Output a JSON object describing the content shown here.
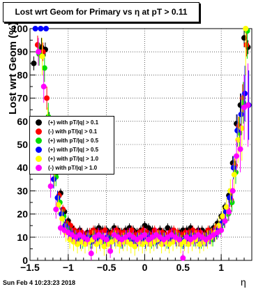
{
  "header": {
    "title": "Lost wrt Geom for Primary vs   η at pT > 0.11",
    "timestamp": "Sun Feb  4 10:23:23 2018"
  },
  "chart_data": {
    "type": "scatter",
    "title": "Lost wrt Geom for Primary vs   η at pT > 0.11",
    "xlabel": "η",
    "ylabel": "Lost wrt Geom (%)",
    "xlim": [
      -1.5,
      1.4
    ],
    "ylim": [
      0,
      100
    ],
    "xticks": [
      "−1.5",
      "−1",
      "−0.5",
      "0",
      "0.5",
      "1"
    ],
    "yticks": [
      "0",
      "10",
      "20",
      "30",
      "40",
      "50",
      "60",
      "70",
      "80",
      "90",
      "100"
    ],
    "grid": true,
    "legend_position": "center-left",
    "series": [
      {
        "name": "(+) with pT/|q| > 0.1",
        "color": "#000000",
        "x": [
          -1.45,
          -1.35,
          -1.3,
          -1.25,
          -1.2,
          -1.15,
          -1.1,
          -1.05,
          -1.0,
          -0.95,
          -0.9,
          -0.85,
          -0.8,
          -0.75,
          -0.7,
          -0.65,
          -0.6,
          -0.55,
          -0.5,
          -0.45,
          -0.4,
          -0.35,
          -0.3,
          -0.25,
          -0.2,
          -0.15,
          -0.1,
          -0.05,
          0.0,
          0.05,
          0.1,
          0.15,
          0.2,
          0.25,
          0.3,
          0.35,
          0.4,
          0.45,
          0.5,
          0.55,
          0.6,
          0.65,
          0.7,
          0.75,
          0.8,
          0.85,
          0.9,
          0.95,
          1.0,
          1.05,
          1.1,
          1.15,
          1.2,
          1.25,
          1.3,
          1.35
        ],
        "y": [
          85,
          92,
          91,
          60,
          45,
          38,
          29,
          21,
          17,
          14,
          12,
          13,
          11,
          12,
          12,
          13,
          14,
          13,
          13,
          12,
          14,
          13,
          12,
          13,
          14,
          13,
          12,
          13,
          15,
          14,
          13,
          12,
          13,
          12,
          14,
          13,
          12,
          12,
          13,
          13,
          14,
          12,
          13,
          13,
          12,
          13,
          14,
          16,
          19,
          23,
          28,
          42,
          59,
          67,
          96,
          92
        ],
        "err": [
          3,
          4,
          3,
          4,
          3,
          2,
          2,
          2,
          2,
          2,
          2,
          2,
          2,
          2,
          2,
          2,
          2,
          2,
          2,
          2,
          2,
          2,
          2,
          2,
          2,
          2,
          2,
          2,
          2,
          2,
          2,
          2,
          2,
          2,
          2,
          2,
          2,
          2,
          2,
          2,
          2,
          2,
          2,
          2,
          2,
          2,
          2,
          2,
          2,
          2,
          3,
          3,
          4,
          5,
          4,
          3
        ]
      },
      {
        "name": "(-) with pT/|q| > 0.1",
        "color": "#ff0000",
        "x": [
          -1.4,
          -1.33,
          -1.28,
          -1.22,
          -1.17,
          -1.12,
          -1.07,
          -1.02,
          -0.97,
          -0.92,
          -0.87,
          -0.82,
          -0.77,
          -0.72,
          -0.67,
          -0.62,
          -0.57,
          -0.52,
          -0.47,
          -0.42,
          -0.37,
          -0.32,
          -0.27,
          -0.22,
          -0.17,
          -0.12,
          -0.07,
          -0.02,
          0.03,
          0.08,
          0.13,
          0.18,
          0.23,
          0.28,
          0.33,
          0.38,
          0.43,
          0.48,
          0.53,
          0.58,
          0.63,
          0.68,
          0.73,
          0.78,
          0.83,
          0.88,
          0.93,
          0.98,
          1.03,
          1.08,
          1.13,
          1.18,
          1.23,
          1.28,
          1.33
        ],
        "y": [
          93,
          90,
          70,
          52,
          40,
          28,
          22,
          16,
          15,
          13,
          12,
          12,
          11,
          12,
          13,
          12,
          12,
          13,
          11,
          12,
          13,
          12,
          12,
          12,
          13,
          11,
          12,
          13,
          12,
          11,
          13,
          12,
          12,
          11,
          12,
          13,
          12,
          11,
          12,
          12,
          13,
          12,
          12,
          11,
          13,
          12,
          14,
          15,
          18,
          22,
          26,
          41,
          58,
          70,
          93
        ],
        "err": [
          4,
          4,
          5,
          4,
          3,
          2,
          2,
          2,
          2,
          2,
          2,
          2,
          2,
          2,
          2,
          2,
          2,
          2,
          2,
          2,
          2,
          2,
          2,
          2,
          2,
          2,
          2,
          2,
          2,
          2,
          2,
          2,
          2,
          2,
          2,
          2,
          2,
          2,
          2,
          2,
          2,
          2,
          2,
          2,
          2,
          2,
          2,
          2,
          2,
          2,
          3,
          3,
          4,
          6,
          5
        ]
      },
      {
        "name": "(+) with pT/|q| > 0.5",
        "color": "#00dd00",
        "x": [
          -1.38,
          -1.31,
          -1.26,
          -1.21,
          -1.16,
          -1.11,
          -1.06,
          -1.01,
          -0.96,
          -0.91,
          -0.86,
          -0.81,
          -0.76,
          -0.71,
          -0.66,
          -0.61,
          -0.56,
          -0.51,
          -0.46,
          -0.41,
          -0.36,
          -0.31,
          -0.26,
          -0.21,
          -0.16,
          -0.11,
          -0.06,
          -0.01,
          0.04,
          0.09,
          0.14,
          0.19,
          0.24,
          0.29,
          0.34,
          0.39,
          0.44,
          0.49,
          0.54,
          0.59,
          0.64,
          0.69,
          0.74,
          0.79,
          0.84,
          0.89,
          0.94,
          0.99,
          1.04,
          1.09,
          1.14,
          1.19,
          1.24,
          1.29,
          1.34
        ],
        "y": [
          89,
          83,
          62,
          44,
          36,
          25,
          19,
          14,
          11,
          10,
          9,
          8,
          9,
          8,
          10,
          9,
          9,
          8,
          9,
          10,
          9,
          8,
          9,
          10,
          9,
          8,
          9,
          10,
          9,
          8,
          9,
          10,
          9,
          8,
          9,
          10,
          9,
          8,
          9,
          10,
          9,
          9,
          8,
          9,
          10,
          9,
          12,
          14,
          17,
          20,
          25,
          38,
          55,
          68,
          99
        ],
        "err": [
          5,
          6,
          6,
          5,
          4,
          3,
          3,
          3,
          3,
          3,
          3,
          3,
          3,
          3,
          3,
          3,
          3,
          3,
          3,
          3,
          3,
          3,
          3,
          3,
          3,
          3,
          3,
          3,
          3,
          3,
          3,
          3,
          3,
          3,
          3,
          3,
          3,
          3,
          3,
          3,
          3,
          3,
          3,
          3,
          3,
          3,
          3,
          3,
          3,
          3,
          4,
          5,
          7,
          9,
          12
        ]
      },
      {
        "name": "(+) with pT/|q| > 0.5",
        "color": "#0000ff",
        "x": [
          -1.43,
          -1.36,
          -1.29,
          -1.24,
          -1.19,
          -1.14,
          -1.09,
          -1.04,
          -0.99,
          -0.94,
          -0.89,
          -0.84,
          -0.79,
          -0.74,
          -0.69,
          -0.64,
          -0.59,
          -0.54,
          -0.49,
          -0.44,
          -0.39,
          -0.34,
          -0.29,
          -0.24,
          -0.19,
          -0.14,
          -0.09,
          -0.04,
          0.01,
          0.06,
          0.11,
          0.16,
          0.21,
          0.26,
          0.31,
          0.36,
          0.41,
          0.46,
          0.51,
          0.56,
          0.61,
          0.66,
          0.71,
          0.76,
          0.81,
          0.86,
          0.91,
          0.96,
          1.01,
          1.06,
          1.11,
          1.16,
          1.21,
          1.26,
          1.31,
          1.36
        ],
        "y": [
          100,
          100,
          100,
          48,
          35,
          27,
          20,
          15,
          12,
          10,
          9,
          8,
          9,
          10,
          8,
          9,
          8,
          9,
          10,
          8,
          9,
          9,
          8,
          10,
          9,
          8,
          9,
          9,
          8,
          10,
          9,
          8,
          9,
          9,
          8,
          10,
          9,
          9,
          8,
          9,
          10,
          9,
          8,
          9,
          9,
          10,
          11,
          13,
          16,
          21,
          27,
          40,
          56,
          63,
          72,
          67
        ],
        "err": [
          1,
          1,
          1,
          5,
          4,
          3,
          3,
          3,
          3,
          3,
          3,
          3,
          3,
          3,
          3,
          3,
          3,
          3,
          3,
          3,
          3,
          3,
          3,
          3,
          3,
          3,
          3,
          3,
          3,
          3,
          3,
          3,
          3,
          3,
          3,
          3,
          3,
          3,
          3,
          3,
          3,
          3,
          3,
          3,
          3,
          3,
          3,
          3,
          3,
          3,
          4,
          5,
          7,
          9,
          12,
          15
        ]
      },
      {
        "name": "(+) with pT/|q| > 1.0",
        "color": "#ffff00",
        "x": [
          -1.34,
          -1.27,
          -1.18,
          -1.13,
          -1.08,
          -1.03,
          -0.98,
          -0.93,
          -0.88,
          -0.83,
          -0.78,
          -0.73,
          -0.68,
          -0.63,
          -0.58,
          -0.53,
          -0.48,
          -0.43,
          -0.38,
          -0.33,
          -0.28,
          -0.23,
          -0.18,
          -0.13,
          -0.08,
          -0.03,
          0.02,
          0.07,
          0.12,
          0.17,
          0.22,
          0.27,
          0.32,
          0.37,
          0.42,
          0.47,
          0.52,
          0.57,
          0.62,
          0.67,
          0.72,
          0.77,
          0.82,
          0.87,
          0.92,
          0.97,
          1.02,
          1.07,
          1.12,
          1.17,
          1.22,
          1.27,
          1.32
        ],
        "y": [
          88,
          58,
          38,
          24,
          18,
          12,
          9,
          8,
          7,
          8,
          7,
          8,
          9,
          7,
          8,
          6,
          7,
          8,
          9,
          7,
          8,
          8,
          7,
          6,
          8,
          7,
          8,
          7,
          8,
          9,
          7,
          8,
          7,
          8,
          9,
          7,
          8,
          7,
          8,
          9,
          7,
          8,
          9,
          10,
          12,
          15,
          19,
          23,
          30,
          37,
          52,
          57,
          100
        ],
        "err": [
          8,
          8,
          6,
          4,
          4,
          4,
          4,
          4,
          4,
          4,
          4,
          4,
          4,
          4,
          4,
          4,
          4,
          4,
          4,
          4,
          4,
          4,
          4,
          4,
          4,
          4,
          4,
          4,
          4,
          4,
          4,
          4,
          4,
          4,
          4,
          4,
          4,
          4,
          4,
          4,
          4,
          4,
          4,
          4,
          4,
          4,
          4,
          4,
          5,
          7,
          10,
          14,
          20
        ]
      },
      {
        "name": "(-) with pT/|q| > 1.0",
        "color": "#ff00ff",
        "x": [
          -1.39,
          -1.32,
          -1.23,
          -1.16,
          -1.1,
          -1.05,
          -1.0,
          -0.95,
          -0.9,
          -0.85,
          -0.8,
          -0.75,
          -0.7,
          -0.65,
          -0.6,
          -0.55,
          -0.5,
          -0.45,
          -0.4,
          -0.35,
          -0.3,
          -0.25,
          -0.2,
          -0.15,
          -0.1,
          -0.05,
          0.0,
          0.05,
          0.1,
          0.15,
          0.2,
          0.25,
          0.3,
          0.35,
          0.4,
          0.45,
          0.5,
          0.55,
          0.6,
          0.65,
          0.7,
          0.75,
          0.8,
          0.85,
          0.9,
          0.95,
          1.0,
          1.05,
          1.1,
          1.15,
          1.2,
          1.25,
          1.3,
          1.35
        ],
        "y": [
          90,
          75,
          32,
          22,
          14,
          13,
          12,
          11,
          10,
          11,
          10,
          9,
          3,
          10,
          11,
          10,
          9,
          4,
          11,
          10,
          9,
          10,
          11,
          10,
          9,
          10,
          11,
          9,
          10,
          11,
          10,
          9,
          10,
          11,
          10,
          9,
          1,
          10,
          9,
          10,
          11,
          10,
          9,
          10,
          11,
          12,
          13,
          17,
          21,
          30,
          45,
          48,
          66,
          67
        ],
        "err": [
          6,
          7,
          5,
          4,
          3,
          3,
          3,
          3,
          3,
          3,
          3,
          3,
          3,
          3,
          3,
          3,
          3,
          3,
          3,
          3,
          3,
          3,
          3,
          3,
          3,
          3,
          3,
          3,
          3,
          3,
          3,
          3,
          3,
          3,
          3,
          3,
          3,
          3,
          3,
          3,
          3,
          3,
          3,
          3,
          3,
          3,
          3,
          3,
          4,
          5,
          7,
          10,
          14,
          18
        ]
      }
    ]
  }
}
